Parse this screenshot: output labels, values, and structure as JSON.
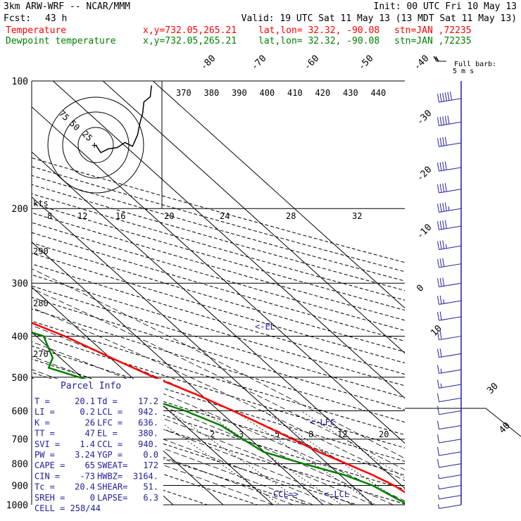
{
  "header": {
    "model": "3km ARW-WRF -- NCAR/MMM",
    "init": "Init: 00 UTC Fri 10 May 13",
    "fcst_label": "Fcst:",
    "fcst_value": "43 h",
    "valid": "Valid: 19 UTC Sat 11 May 13 (13 MDT Sat 11 May 13)",
    "temp_line": {
      "name": "Temperature",
      "xy": "x,y=732.05,265.21",
      "latlon": "lat,lon= 32.32, -90.08",
      "stn": "stn=JAN ,72235",
      "color": "#ff0000"
    },
    "dew_line": {
      "name": "Dewpoint temperature",
      "xy": "x,y=732.05,265.21",
      "latlon": "lat,lon= 32.32, -90.08",
      "stn": "stn=JAN ,72235",
      "color": "#008000"
    }
  },
  "barb_legend": {
    "line1": "Full barb:",
    "line2": "5 m s"
  },
  "hodograph": {
    "ring_labels": [
      "75",
      "50",
      "25"
    ],
    "unit": "kts",
    "speed_labels": [
      "8",
      "12",
      "16",
      "20",
      "24",
      "28",
      "32"
    ]
  },
  "parcel_info": {
    "title": "Parcel Info",
    "rows": [
      [
        "T  =",
        "20.1",
        "Td =",
        "17.2"
      ],
      [
        "LI =",
        "0.2",
        "LCL =",
        "942."
      ],
      [
        "K  =",
        "26",
        "LFC =",
        "636."
      ],
      [
        "TT =",
        "47",
        "EL  =",
        "380."
      ],
      [
        "SVI =",
        "1.4",
        "CCL =",
        "940."
      ],
      [
        "PW =",
        "3.24",
        "YGP =",
        "0.0"
      ],
      [
        "CAPE =",
        "65",
        "SWEAT=",
        "172"
      ],
      [
        "CIN =",
        "-73",
        "HWBZ=",
        "3164."
      ],
      [
        "Tc =",
        "20.4",
        "SHEAR=",
        "51."
      ],
      [
        "SREH =",
        "0",
        "LAPSE=",
        "6.3"
      ]
    ],
    "cell": "CELL = 258/44"
  },
  "chart_data": {
    "type": "line",
    "title": "Skew-T log-P sounding",
    "pressure_levels": [
      100,
      200,
      300,
      400,
      500,
      600,
      700,
      800,
      900,
      1000
    ],
    "isotherm_labels": [
      -80,
      -70,
      -60,
      -50,
      -40,
      -30,
      -20,
      -10,
      0,
      10,
      20,
      30,
      40
    ],
    "theta_labels": [
      "370",
      "380",
      "390",
      "400",
      "410",
      "420",
      "430",
      "440"
    ],
    "theta_labels_low": [
      "290",
      "280",
      "270"
    ],
    "mixing_ratio_labels": [
      "2",
      "3",
      "5",
      "8",
      "12",
      "20"
    ],
    "annotations": {
      "el": "<-EL",
      "lfc": "<-LFC",
      "ccl": "CCL=>",
      "lcl": "<-LCL"
    },
    "series": [
      {
        "name": "Temperature",
        "color": "#ff0000",
        "points": [
          [
            1000,
            20.1
          ],
          [
            975,
            18.8
          ],
          [
            950,
            19.4
          ],
          [
            900,
            18.5
          ],
          [
            850,
            16.5
          ],
          [
            800,
            13.8
          ],
          [
            750,
            10.8
          ],
          [
            700,
            8.5
          ],
          [
            650,
            5.8
          ],
          [
            600,
            2.8
          ],
          [
            550,
            -0.8
          ],
          [
            500,
            -5.5
          ],
          [
            475,
            -7.6
          ],
          [
            450,
            -9.8
          ],
          [
            400,
            -14.3
          ],
          [
            350,
            -21.0
          ],
          [
            300,
            -28.5
          ],
          [
            250,
            -38.5
          ],
          [
            200,
            -50.8
          ],
          [
            175,
            -53.0
          ],
          [
            150,
            -52.5
          ],
          [
            125,
            -55.5
          ],
          [
            100,
            -60.5
          ]
        ]
      },
      {
        "name": "Dewpoint temperature",
        "color": "#008000",
        "points": [
          [
            1000,
            17.2
          ],
          [
            975,
            16.3
          ],
          [
            950,
            15.6
          ],
          [
            900,
            14.2
          ],
          [
            850,
            10.8
          ],
          [
            800,
            5.2
          ],
          [
            750,
            -0.2
          ],
          [
            700,
            -1.5
          ],
          [
            650,
            -2.8
          ],
          [
            600,
            -6.8
          ],
          [
            550,
            -13.0
          ],
          [
            500,
            -20.5
          ],
          [
            475,
            -24.5
          ],
          [
            450,
            -21.5
          ],
          [
            400,
            -18.5
          ],
          [
            350,
            -29.0
          ],
          [
            300,
            -39.0
          ],
          [
            250,
            -51.0
          ],
          [
            210,
            -60.0
          ],
          [
            200,
            -64.5
          ],
          [
            175,
            -72.5
          ],
          [
            150,
            -74.0
          ],
          [
            125,
            -73.0
          ],
          [
            100,
            -72.5
          ]
        ]
      }
    ],
    "hodograph_trace": [
      [
        0,
        0
      ],
      [
        4,
        6
      ],
      [
        10,
        3
      ],
      [
        17,
        2
      ],
      [
        23,
        -2
      ],
      [
        29,
        1
      ],
      [
        33,
        -8
      ],
      [
        35,
        -18
      ],
      [
        37,
        -25
      ],
      [
        38,
        -34
      ],
      [
        43,
        -38
      ],
      [
        44,
        -47
      ]
    ],
    "wind_barbs": [
      {
        "p": 110,
        "dir": 250,
        "spd": 31
      },
      {
        "p": 125,
        "dir": 260,
        "spd": 25
      },
      {
        "p": 140,
        "dir": 255,
        "spd": 22
      },
      {
        "p": 160,
        "dir": 255,
        "spd": 20
      },
      {
        "p": 180,
        "dir": 260,
        "spd": 20
      },
      {
        "p": 200,
        "dir": 255,
        "spd": 24
      },
      {
        "p": 220,
        "dir": 255,
        "spd": 20
      },
      {
        "p": 245,
        "dir": 260,
        "spd": 18
      },
      {
        "p": 270,
        "dir": 255,
        "spd": 17
      },
      {
        "p": 300,
        "dir": 250,
        "spd": 16
      },
      {
        "p": 330,
        "dir": 245,
        "spd": 14
      },
      {
        "p": 360,
        "dir": 250,
        "spd": 12
      },
      {
        "p": 400,
        "dir": 245,
        "spd": 11
      },
      {
        "p": 440,
        "dir": 240,
        "spd": 10
      },
      {
        "p": 480,
        "dir": 245,
        "spd": 9
      },
      {
        "p": 520,
        "dir": 240,
        "spd": 8
      },
      {
        "p": 560,
        "dir": 240,
        "spd": 7
      },
      {
        "p": 600,
        "dir": 235,
        "spd": 7
      },
      {
        "p": 650,
        "dir": 230,
        "spd": 6
      },
      {
        "p": 700,
        "dir": 225,
        "spd": 6
      },
      {
        "p": 750,
        "dir": 220,
        "spd": 5
      },
      {
        "p": 800,
        "dir": 215,
        "spd": 5
      },
      {
        "p": 850,
        "dir": 210,
        "spd": 4
      },
      {
        "p": 900,
        "dir": 200,
        "spd": 4
      },
      {
        "p": 950,
        "dir": 190,
        "spd": 3
      },
      {
        "p": 1000,
        "dir": 180,
        "spd": 3
      }
    ]
  }
}
